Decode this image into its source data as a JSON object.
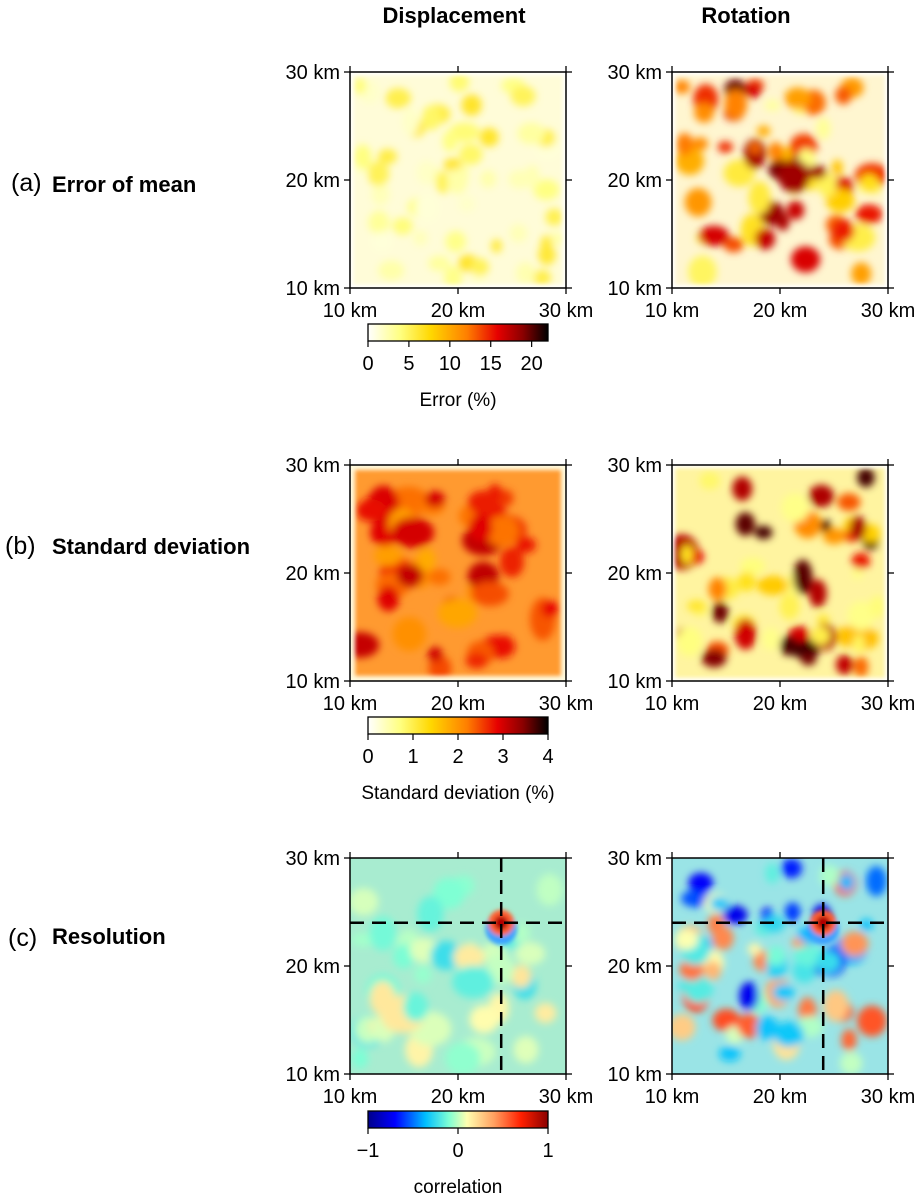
{
  "column_titles": [
    "Displacement",
    "Rotation"
  ],
  "rows": [
    {
      "letter": "(a)",
      "title": "Error of mean"
    },
    {
      "letter": "(b)",
      "title": "Standard deviation"
    },
    {
      "letter": "(c)",
      "title": "Resolution"
    }
  ],
  "chart_data": [
    {
      "type": "heatmap",
      "row": "(a)",
      "column": "Displacement",
      "x_ticks": [
        "10 km",
        "20 km",
        "30 km"
      ],
      "y_ticks": [
        "10 km",
        "20 km",
        "30 km"
      ],
      "xlim": [
        10,
        30
      ],
      "ylim": [
        10,
        30
      ],
      "colormap": "hot",
      "description_values": {
        "min": 0,
        "max": 8
      }
    },
    {
      "type": "heatmap",
      "row": "(a)",
      "column": "Rotation",
      "x_ticks": [
        "10 km",
        "20 km",
        "30 km"
      ],
      "y_ticks": [
        "10 km",
        "20 km",
        "30 km"
      ],
      "xlim": [
        10,
        30
      ],
      "ylim": [
        10,
        30
      ],
      "colormap": "hot",
      "description_values": {
        "min": 0,
        "max": 22
      }
    },
    {
      "type": "heatmap",
      "row": "(b)",
      "column": "Displacement",
      "x_ticks": [
        "10 km",
        "20 km",
        "30 km"
      ],
      "y_ticks": [
        "10 km",
        "20 km",
        "30 km"
      ],
      "xlim": [
        10,
        30
      ],
      "ylim": [
        10,
        30
      ],
      "colormap": "hot",
      "description_values": {
        "min": 0,
        "max": 2.9
      }
    },
    {
      "type": "heatmap",
      "row": "(b)",
      "column": "Rotation",
      "x_ticks": [
        "10 km",
        "20 km",
        "30 km"
      ],
      "y_ticks": [
        "10 km",
        "20 km",
        "30 km"
      ],
      "xlim": [
        10,
        30
      ],
      "ylim": [
        10,
        30
      ],
      "colormap": "hot",
      "description_values": {
        "min": 0,
        "max": 4
      }
    },
    {
      "type": "heatmap",
      "row": "(c)",
      "column": "Displacement",
      "x_ticks": [
        "10 km",
        "20 km",
        "30 km"
      ],
      "y_ticks": [
        "10 km",
        "20 km",
        "30 km"
      ],
      "xlim": [
        10,
        30
      ],
      "ylim": [
        10,
        30
      ],
      "colormap": "jet",
      "peak": {
        "x": 24,
        "y": 24,
        "value": 1
      },
      "crosshair": {
        "x": 24,
        "y": 24
      }
    },
    {
      "type": "heatmap",
      "row": "(c)",
      "column": "Rotation",
      "x_ticks": [
        "10 km",
        "20 km",
        "30 km"
      ],
      "y_ticks": [
        "10 km",
        "20 km",
        "30 km"
      ],
      "xlim": [
        10,
        30
      ],
      "ylim": [
        10,
        30
      ],
      "colormap": "jet",
      "peak": {
        "x": 24,
        "y": 24,
        "value": 1
      },
      "crosshair": {
        "x": 24,
        "y": 24
      }
    }
  ],
  "colorbars": [
    {
      "row": "(a)",
      "label": "Error (%)",
      "range": [
        0,
        22
      ],
      "ticks": [
        0,
        5,
        10,
        15,
        20
      ],
      "tick_labels": [
        "0",
        "5",
        "10",
        "15",
        "20"
      ],
      "colormap": "hot"
    },
    {
      "row": "(b)",
      "label": "Standard deviation (%)",
      "range": [
        0,
        4
      ],
      "ticks": [
        0,
        1,
        2,
        3,
        4
      ],
      "tick_labels": [
        "0",
        "1",
        "2",
        "3",
        "4"
      ],
      "colormap": "hot"
    },
    {
      "row": "(c)",
      "label": "correlation",
      "range": [
        -1,
        1
      ],
      "ticks": [
        -1,
        0,
        1
      ],
      "tick_labels": [
        "−1",
        "0",
        "1"
      ],
      "colormap": "jet"
    }
  ]
}
